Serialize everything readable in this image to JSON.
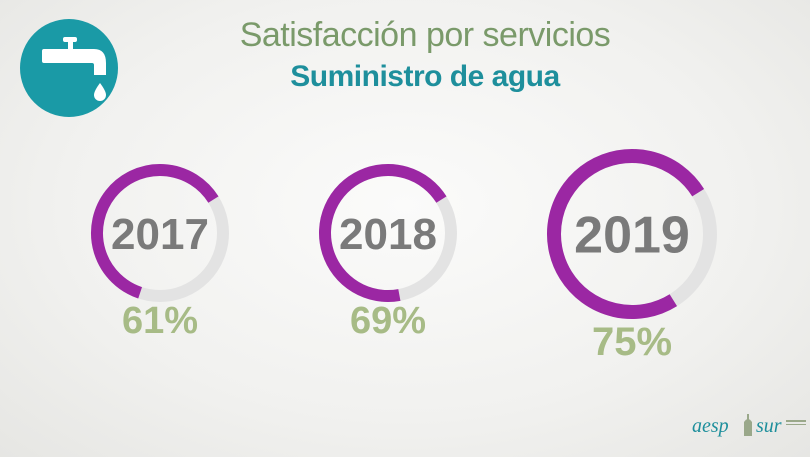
{
  "header": {
    "title": "Satisfacción por servicios",
    "subtitle": "Suministro de agua"
  },
  "icon": {
    "name": "water-tap-icon",
    "bg_color": "#1a9aa6"
  },
  "colors": {
    "arc": "#9b27a3",
    "track": "#e3e3e3",
    "year": "#7a7a7a",
    "percent": "#a7bb86"
  },
  "chart_data": {
    "type": "donut",
    "title": "Satisfacción por servicios",
    "subtitle": "Suministro de agua",
    "categories": [
      "2017",
      "2018",
      "2019"
    ],
    "values": [
      61,
      69,
      75
    ],
    "value_labels": [
      "61%",
      "69%",
      "75%"
    ],
    "unit": "%"
  },
  "logo": {
    "text_left": "aesp",
    "text_right": "sur"
  }
}
